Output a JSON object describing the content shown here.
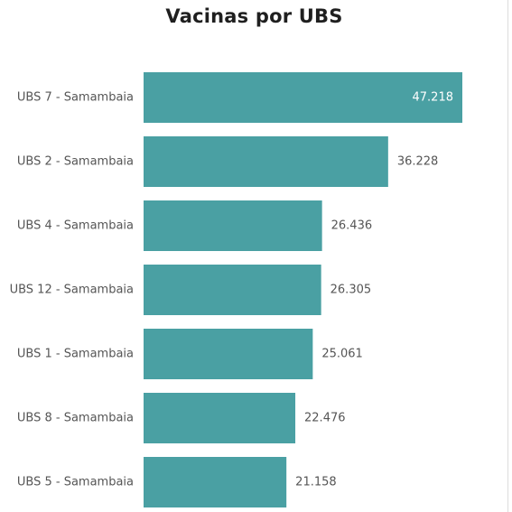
{
  "chart_data": {
    "type": "bar",
    "orientation": "horizontal",
    "title": "Vacinas por UBS",
    "categories": [
      "UBS 7 - Samambaia",
      "UBS 2 - Samambaia",
      "UBS 4 - Samambaia",
      "UBS 12 - Samambaia",
      "UBS 1 - Samambaia",
      "UBS 8 - Samambaia",
      "UBS 5 - Samambaia"
    ],
    "values": [
      47218,
      36228,
      26436,
      26305,
      25061,
      22476,
      21158
    ],
    "value_labels": [
      "47.218",
      "36.228",
      "26.436",
      "26.305",
      "25.061",
      "22.476",
      "21.158"
    ],
    "xlim": [
      0,
      47218
    ],
    "grid": false,
    "bar_color": "#4aa0a3",
    "label_color_inside": "#ffffff",
    "label_color_outside": "#555555"
  }
}
